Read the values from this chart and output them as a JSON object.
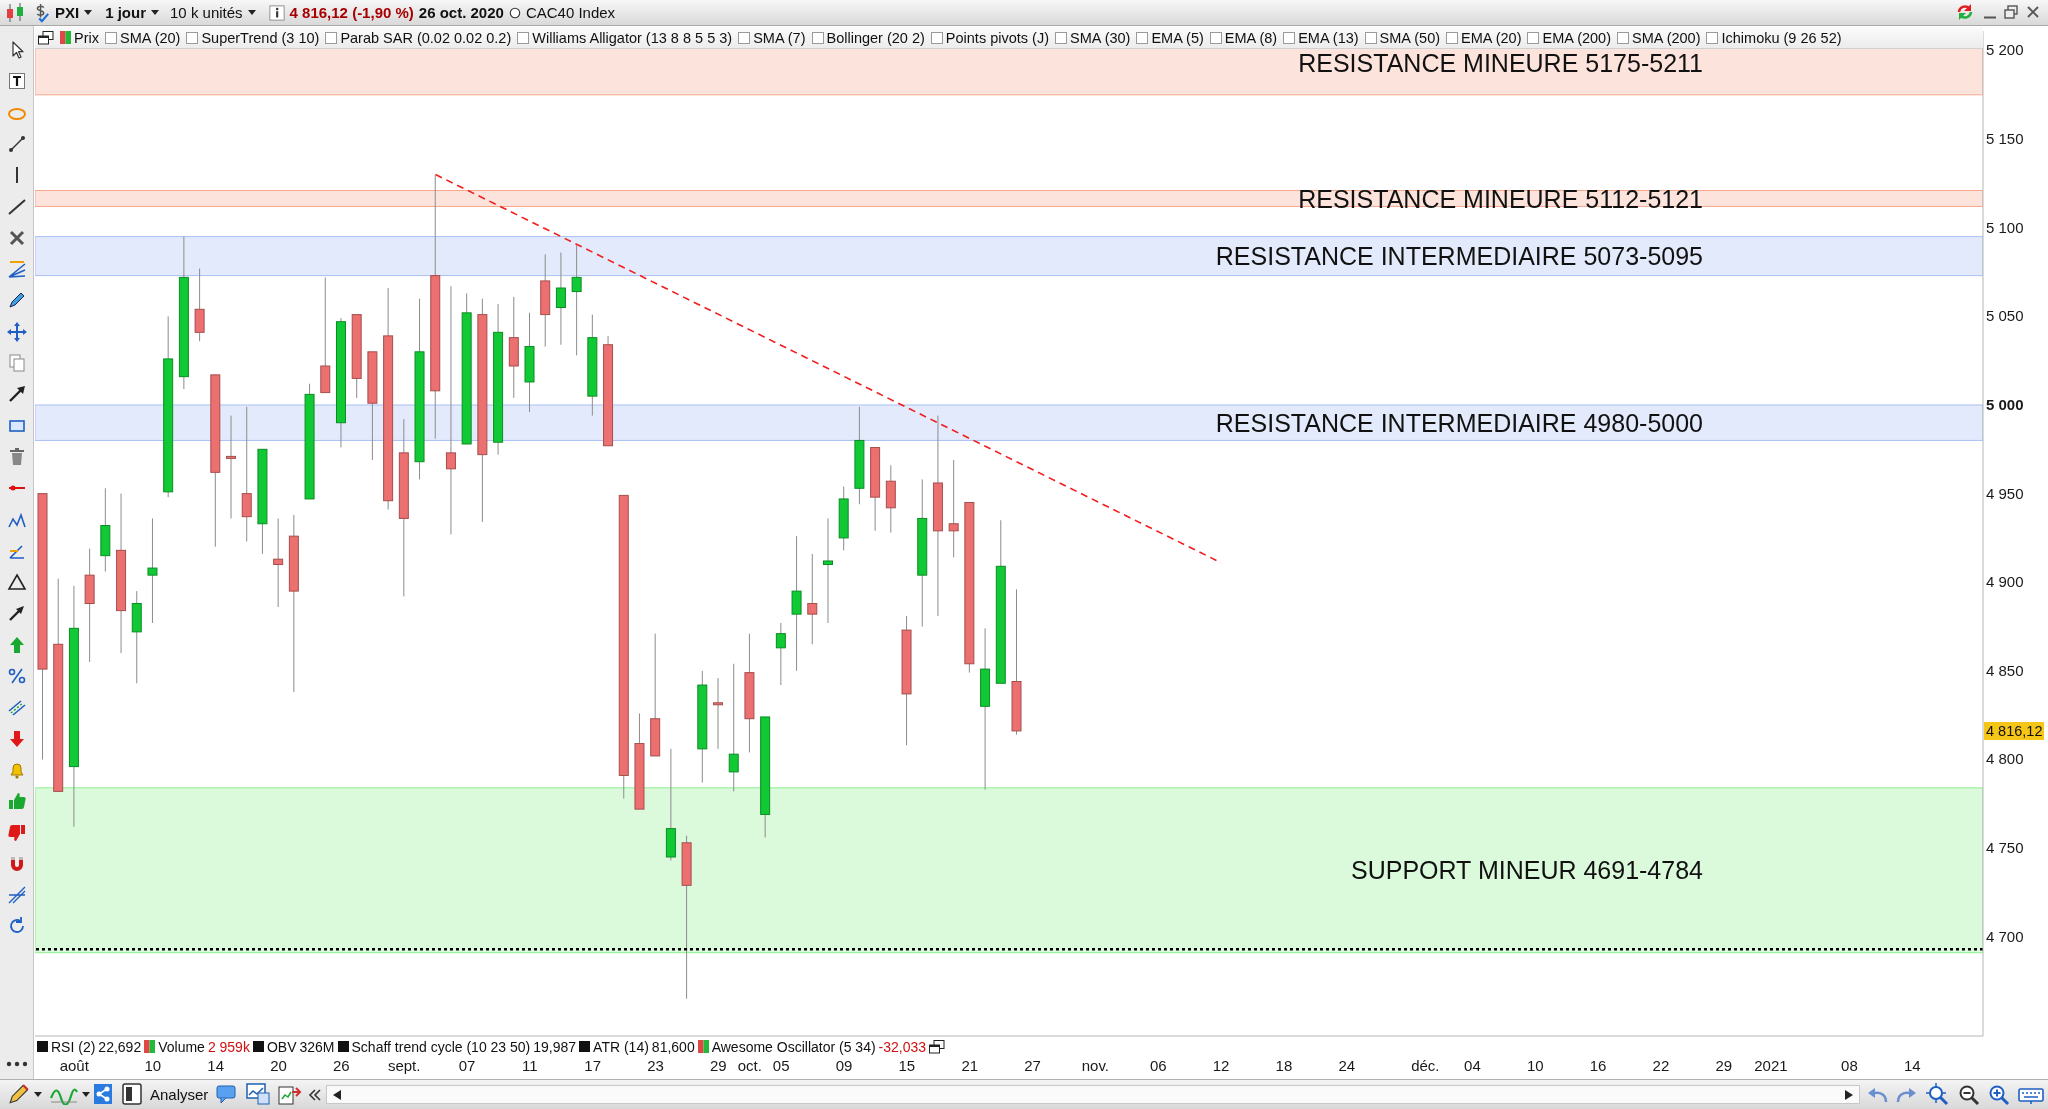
{
  "chart_data": {
    "type": "candlestick",
    "title": "PXI",
    "categories": [
      null,
      null,
      "août",
      null,
      null,
      null,
      null,
      "10",
      null,
      null,
      null,
      "14",
      null,
      null,
      null,
      "20",
      null,
      null,
      null,
      "26",
      null,
      null,
      null,
      "sept.",
      null,
      null,
      null,
      "07",
      null,
      null,
      null,
      "11",
      null,
      null,
      null,
      "17",
      null,
      null,
      null,
      "23",
      null,
      null,
      null,
      "29",
      null,
      "oct.",
      null,
      "05",
      null,
      null,
      null,
      "09",
      null,
      null,
      null,
      "15",
      null,
      null,
      null,
      "21",
      null,
      null,
      null,
      "27",
      null,
      null,
      null,
      "nov.",
      null,
      null,
      null,
      "06",
      null,
      null,
      null,
      "12",
      null,
      null,
      null,
      "18",
      null,
      null,
      null,
      "24",
      null,
      null,
      null,
      null,
      "déc.",
      null,
      null,
      "04",
      null,
      null,
      null,
      "10",
      null,
      null,
      null,
      "16",
      null,
      null,
      null,
      "22",
      null,
      null,
      null,
      "29",
      null,
      null,
      "2021",
      null,
      null,
      null,
      null,
      "08",
      null,
      null,
      null,
      "14",
      null,
      null,
      null,
      null
    ],
    "ohlc": [
      [
        4950,
        4950,
        4800,
        4851
      ],
      [
        4865,
        4902,
        4782,
        4782
      ],
      [
        4796,
        4898,
        4762,
        4874
      ],
      [
        4904,
        4919,
        4855,
        4888
      ],
      [
        4915,
        4953,
        4906,
        4932
      ],
      [
        4918,
        4950,
        4860,
        4884
      ],
      [
        4872,
        4895,
        4843,
        4888
      ],
      [
        4904,
        4936,
        4877,
        4908
      ],
      [
        4951,
        5050,
        4948,
        5026
      ],
      [
        5016,
        5095,
        5009,
        5072
      ],
      [
        5054,
        5077,
        5036,
        5041
      ],
      [
        5017,
        5017,
        4920,
        4962
      ],
      [
        4971,
        4994,
        4936,
        4970
      ],
      [
        4950,
        4999,
        4923,
        4937
      ],
      [
        4933,
        4975,
        4916,
        4975
      ],
      [
        4913,
        4936,
        4886,
        4910
      ],
      [
        4926,
        4938,
        4838,
        4895
      ],
      [
        4947,
        5012,
        4947,
        5006
      ],
      [
        5022,
        5072,
        5007,
        5007
      ],
      [
        4990,
        5049,
        4976,
        5047
      ],
      [
        5051,
        5051,
        5004,
        5015
      ],
      [
        5030,
        5030,
        4969,
        5001
      ],
      [
        5039,
        5066,
        4941,
        4946
      ],
      [
        4973,
        4992,
        4892,
        4936
      ],
      [
        4968,
        5060,
        4958,
        5030
      ],
      [
        5073,
        5130,
        4981,
        5008
      ],
      [
        4973,
        5067,
        4927,
        4964
      ],
      [
        4978,
        5063,
        4978,
        5052
      ],
      [
        5051,
        5060,
        4934,
        4972
      ],
      [
        4979,
        5057,
        4972,
        5041
      ],
      [
        5038,
        5061,
        5004,
        5022
      ],
      [
        5013,
        5052,
        4996,
        5033
      ],
      [
        5070,
        5085,
        5033,
        5051
      ],
      [
        5055,
        5086,
        5034,
        5066
      ],
      [
        5064,
        5090,
        5028,
        5072
      ],
      [
        5005,
        5051,
        4994,
        5038
      ],
      [
        5034,
        5039,
        4977,
        4977
      ],
      [
        4949,
        4949,
        4778,
        4791
      ],
      [
        4809,
        4826,
        4772,
        4772
      ],
      [
        4823,
        4871,
        4802,
        4802
      ],
      [
        4745,
        4806,
        4743,
        4761
      ],
      [
        4753,
        4757,
        4665,
        4729
      ],
      [
        4806,
        4850,
        4787,
        4842
      ],
      [
        4832,
        4846,
        4806,
        4831
      ],
      [
        4793,
        4854,
        4782,
        4803
      ],
      [
        4849,
        4871,
        4804,
        4823
      ],
      [
        4769,
        4824,
        4756,
        4824
      ],
      [
        4863,
        4877,
        4842,
        4871
      ],
      [
        4882,
        4926,
        4850,
        4895
      ],
      [
        4888,
        4916,
        4865,
        4882
      ],
      [
        4910,
        4936,
        4877,
        4912
      ],
      [
        4925,
        4954,
        4918,
        4947
      ],
      [
        4953,
        4999,
        4944,
        4980
      ],
      [
        4976,
        4976,
        4929,
        4948
      ],
      [
        4957,
        4966,
        4928,
        4942
      ],
      [
        4873,
        4881,
        4808,
        4837
      ],
      [
        4904,
        4958,
        4875,
        4936
      ],
      [
        4956,
        4994,
        4881,
        4929
      ],
      [
        4933,
        4969,
        4914,
        4929
      ],
      [
        4945,
        4945,
        4849,
        4854
      ],
      [
        4830,
        4874,
        4783,
        4851
      ],
      [
        4843,
        4935,
        4843,
        4909
      ],
      [
        4844,
        4896,
        4814,
        4816.12
      ],
      null,
      null,
      null,
      null,
      null,
      null,
      null,
      null,
      null,
      null,
      null,
      null,
      null,
      null,
      null,
      null,
      null,
      null,
      null,
      null,
      null,
      null,
      null,
      null,
      null,
      null,
      null,
      null,
      null,
      null,
      null,
      null,
      null,
      null,
      null,
      null,
      null,
      null,
      null,
      null,
      null,
      null,
      null,
      null,
      null,
      null,
      null,
      null,
      null,
      null,
      null,
      null,
      null,
      null,
      null,
      null,
      null,
      null,
      null,
      null,
      null
    ],
    "colors": [
      "#ec7070",
      "#ec7070",
      "#10c935",
      "#ec7070",
      "#10c935",
      "#ec7070",
      "#10c935",
      "#10c935",
      "#10c935",
      "#10c935",
      "#ec7070",
      "#ec7070",
      "#ec7070",
      "#ec7070",
      "#10c935",
      "#ec7070",
      "#ec7070",
      "#10c935",
      "#ec7070",
      "#10c935",
      "#ec7070",
      "#ec7070",
      "#ec7070",
      "#ec7070",
      "#10c935",
      "#ec7070",
      "#ec7070",
      "#10c935",
      "#ec7070",
      "#10c935",
      "#ec7070",
      "#10c935",
      "#ec7070",
      "#10c935",
      "#10c935",
      "#10c935",
      "#ec7070",
      "#ec7070",
      "#ec7070",
      "#ec7070",
      "#10c935",
      "#ec7070",
      "#10c935",
      "#ec7070",
      "#10c935",
      "#ec7070",
      "#10c935",
      "#10c935",
      "#10c935",
      "#ec7070",
      "#10c935",
      "#10c935",
      "#10c935",
      "#ec7070",
      "#ec7070",
      "#ec7070",
      "#10c935",
      "#ec7070",
      "#ec7070",
      "#ec7070",
      "#10c935",
      "#10c935",
      "#ec7070",
      null,
      null,
      null,
      null,
      null,
      null,
      null,
      null,
      null,
      null,
      null,
      null,
      null,
      null,
      null,
      null,
      null,
      null,
      null,
      null,
      null,
      null,
      null,
      null,
      null,
      null,
      null,
      null,
      null,
      null,
      null,
      null,
      null,
      null,
      null,
      null,
      null,
      null,
      null,
      null,
      null,
      null,
      null,
      null,
      null,
      null,
      null,
      null,
      null,
      null,
      null,
      null,
      null,
      null,
      null,
      null,
      null,
      null,
      null,
      null,
      null
    ],
    "series": [
      {
        "type": "line",
        "color": "#f21d1d",
        "line_style": "dashed",
        "values": [
          null,
          null,
          null,
          null,
          null,
          null,
          null,
          null,
          null,
          null,
          null,
          null,
          null,
          null,
          null,
          null,
          null,
          null,
          null,
          null,
          null,
          null,
          null,
          null,
          null,
          5130,
          null,
          null,
          null,
          null,
          null,
          null,
          null,
          null,
          null,
          null,
          null,
          null,
          null,
          null,
          null,
          null,
          null,
          null,
          null,
          null,
          null,
          null,
          null,
          null,
          null,
          null,
          null,
          null,
          null,
          null,
          null,
          null,
          null,
          null,
          null,
          null,
          null,
          null,
          null,
          null,
          null,
          null,
          null,
          null,
          null,
          null,
          null,
          null,
          null,
          4911,
          null,
          null,
          null,
          null,
          null,
          null,
          null,
          null,
          null,
          null,
          null,
          null,
          null,
          null,
          null,
          null,
          null,
          null,
          null,
          null,
          null,
          null,
          null,
          null,
          null,
          null,
          null,
          null,
          null,
          null,
          null,
          null,
          null,
          null,
          null,
          null,
          null,
          null,
          null,
          null,
          null,
          null,
          null,
          null,
          null,
          null,
          null,
          null
        ]
      }
    ],
    "ylim": [
      4644,
      5211
    ],
    "yticks": [
      {
        "value": 4700,
        "label": "4 700"
      },
      {
        "value": 4750,
        "label": "4 750"
      },
      {
        "value": 4800,
        "label": "4 800"
      },
      {
        "value": 4850,
        "label": "4 850"
      },
      {
        "value": 4900,
        "label": "4 900"
      },
      {
        "value": 4950,
        "label": "4 950"
      },
      {
        "value": 5000,
        "label": "5 000"
      },
      {
        "value": 5050,
        "label": "5 050"
      },
      {
        "value": 5100,
        "label": "5 100"
      },
      {
        "value": 5150,
        "label": "5 150"
      },
      {
        "value": 5200,
        "label": "5 200"
      }
    ],
    "bands": [
      {
        "axis": "y",
        "from": 5175,
        "to": 5211,
        "label": "RESISTANCE MINEURE 5175-5211",
        "color": "#f6a88e"
      },
      {
        "axis": "y",
        "from": 5112,
        "to": 5121,
        "label": "RESISTANCE MINEURE 5112-5121",
        "color": "#f6a88e"
      },
      {
        "axis": "y",
        "from": 5073,
        "to": 5095,
        "label": "RESISTANCE INTERMEDIAIRE 5073-5095",
        "color": "#a9bff5"
      },
      {
        "axis": "y",
        "from": 4980,
        "to": 5000,
        "label": "RESISTANCE INTERMEDIAIRE 4980-5000",
        "color": "#a9bff5"
      },
      {
        "axis": "y",
        "from": 4691,
        "to": 4784,
        "label": "SUPPORT MINEUR 4691-4784",
        "color": "#8ef08e"
      }
    ],
    "ref_lines": [
      {
        "axis": "y",
        "value": 4693,
        "color": "#000000",
        "line_style": "dotted"
      }
    ],
    "annotations": [
      "1 jour",
      "10 k unités",
      "4 816,12 (-1,90 %)",
      "26 oct. 2020",
      "CAC40 Index",
      "Prix",
      "SMA (20)",
      "SuperTrend (3 10)",
      "Parab SAR (0.02 0.02 0.2)",
      "Williams Alligator (13 8 8 5 5 3)",
      "SMA (7)",
      "Bollinger (20 2)",
      "Points pivots (J)",
      "SMA (30)",
      "EMA (5)",
      "EMA (8)",
      "EMA (13)",
      "SMA (50)",
      "EMA (20)",
      "EMA (200)",
      "SMA (200)",
      "Ichimoku (9 26 52)",
      "RSI (2)",
      "22,692",
      "Volume",
      "2 959k",
      "OBV",
      "326M",
      "Schaff trend cycle (10 23 50)",
      "19,987",
      "ATR (14)",
      "81,600",
      "Awesome Oscillator (5 34)",
      "-32,033",
      "Analyser",
      "4 816,12"
    ]
  }
}
